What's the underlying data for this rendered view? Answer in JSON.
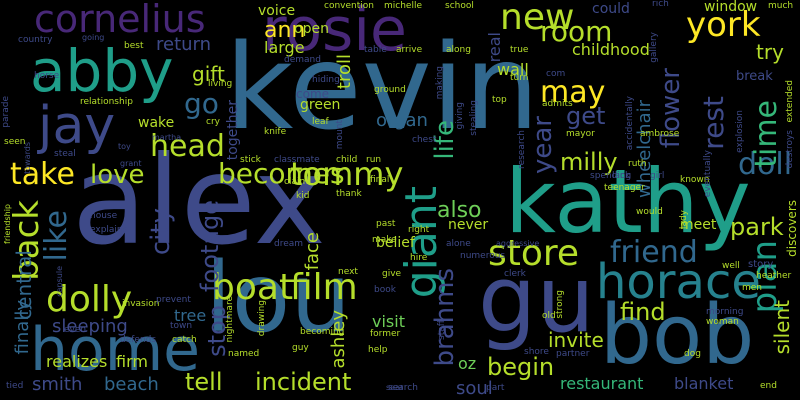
{
  "title": "",
  "palette": [
    "#440154",
    "#482878",
    "#3e4a89",
    "#31688e",
    "#26828e",
    "#1f9e89",
    "#35b779",
    "#6ece58",
    "#b5de2b",
    "#fde725"
  ],
  "words": [
    {
      "text": "kevin",
      "color": "#31688e"
    },
    {
      "text": "alex",
      "color": "#3e4a89"
    },
    {
      "text": "kathy",
      "color": "#1f9e89"
    },
    {
      "text": "abby",
      "color": "#1f9e89"
    },
    {
      "text": "lou",
      "color": "#31688e"
    },
    {
      "text": "gu",
      "color": "#3e4a89"
    },
    {
      "text": "bob",
      "color": "#31688e"
    },
    {
      "text": "home",
      "color": "#31688e"
    },
    {
      "text": "horace",
      "color": "#26828e"
    },
    {
      "text": "rosie",
      "color": "#482878"
    },
    {
      "text": "cornelius",
      "color": "#482878"
    },
    {
      "text": "jay",
      "color": "#3e4a89"
    },
    {
      "text": "giant",
      "color": "#1f9e89"
    },
    {
      "text": "boat",
      "color": "#b5de2b"
    },
    {
      "text": "film",
      "color": "#b5de2b"
    },
    {
      "text": "store",
      "color": "#b5de2b"
    },
    {
      "text": "dolly",
      "color": "#b5de2b"
    },
    {
      "text": "tommy",
      "color": "#b5de2b"
    },
    {
      "text": "new",
      "color": "#b5de2b"
    },
    {
      "text": "york",
      "color": "#fde725"
    },
    {
      "text": "room",
      "color": "#b5de2b"
    },
    {
      "text": "may",
      "color": "#fde725"
    },
    {
      "text": "friend",
      "color": "#31688e"
    },
    {
      "text": "plan",
      "color": "#1f9e89"
    },
    {
      "text": "doll",
      "color": "#31688e"
    },
    {
      "text": "time",
      "color": "#35b779"
    },
    {
      "text": "rest",
      "color": "#3e4a89"
    },
    {
      "text": "flower",
      "color": "#3e4a89"
    },
    {
      "text": "head",
      "color": "#b5de2b"
    },
    {
      "text": "take",
      "color": "#fde725"
    },
    {
      "text": "love",
      "color": "#b5de2b"
    },
    {
      "text": "becomes",
      "color": "#b5de2b"
    },
    {
      "text": "back",
      "color": "#b5de2b"
    },
    {
      "text": "like",
      "color": "#31688e"
    },
    {
      "text": "tell",
      "color": "#b5de2b"
    },
    {
      "text": "incident",
      "color": "#b5de2b"
    },
    {
      "text": "begin",
      "color": "#b5de2b"
    },
    {
      "text": "brahms",
      "color": "#3e4a89"
    },
    {
      "text": "life",
      "color": "#35b779"
    },
    {
      "text": "go",
      "color": "#31688e"
    },
    {
      "text": "get",
      "color": "#3e4a89"
    },
    {
      "text": "year",
      "color": "#3e4a89"
    },
    {
      "text": "find",
      "color": "#b5de2b"
    },
    {
      "text": "park",
      "color": "#b5de2b"
    },
    {
      "text": "milly",
      "color": "#b5de2b"
    },
    {
      "text": "also",
      "color": "#6ece58"
    },
    {
      "text": "city",
      "color": "#3e4a89"
    },
    {
      "text": "footage",
      "color": "#3e4a89"
    },
    {
      "text": "stop",
      "color": "#3e4a89"
    },
    {
      "text": "gift",
      "color": "#b5de2b"
    },
    {
      "text": "return",
      "color": "#3e4a89"
    },
    {
      "text": "central",
      "color": "#31688e"
    },
    {
      "text": "sleeping",
      "color": "#3e4a89"
    },
    {
      "text": "smith",
      "color": "#3e4a89"
    },
    {
      "text": "beach",
      "color": "#31688e"
    },
    {
      "text": "silent",
      "color": "#b5de2b"
    },
    {
      "text": "invite",
      "color": "#b5de2b"
    },
    {
      "text": "restaurant",
      "color": "#35b779"
    },
    {
      "text": "blanket",
      "color": "#3e4a89"
    },
    {
      "text": "soul",
      "color": "#3e4a89"
    },
    {
      "text": "oz",
      "color": "#6ece58"
    },
    {
      "text": "wheelchair",
      "color": "#31688e"
    },
    {
      "text": "try",
      "color": "#b5de2b"
    },
    {
      "text": "childhood",
      "color": "#b5de2b"
    },
    {
      "text": "ann",
      "color": "#fde725"
    },
    {
      "text": "large",
      "color": "#b5de2b"
    },
    {
      "text": "troll",
      "color": "#b5de2b"
    },
    {
      "text": "wall",
      "color": "#b5de2b"
    },
    {
      "text": "real",
      "color": "#3e4a89"
    },
    {
      "text": "open",
      "color": "#b5de2b"
    },
    {
      "text": "voice",
      "color": "#b5de2b"
    },
    {
      "text": "convention",
      "color": "#b5de2b"
    },
    {
      "text": "michelle",
      "color": "#b5de2b"
    },
    {
      "text": "school",
      "color": "#b5de2b"
    },
    {
      "text": "could",
      "color": "#3e4a89"
    },
    {
      "text": "rich",
      "color": "#3e4a89"
    },
    {
      "text": "window",
      "color": "#b5de2b"
    },
    {
      "text": "much",
      "color": "#b5de2b"
    },
    {
      "text": "break",
      "color": "#3e4a89"
    },
    {
      "text": "wake",
      "color": "#b5de2b"
    },
    {
      "text": "together",
      "color": "#3e4a89"
    },
    {
      "text": "green",
      "color": "#b5de2b"
    },
    {
      "text": "come",
      "color": "#3e4a89"
    },
    {
      "text": "organ",
      "color": "#31688e"
    },
    {
      "text": "belief",
      "color": "#b5de2b"
    },
    {
      "text": "face",
      "color": "#b5de2b"
    },
    {
      "text": "visit",
      "color": "#6ece58"
    },
    {
      "text": "ashley",
      "color": "#b5de2b"
    },
    {
      "text": "tree",
      "color": "#31688e"
    },
    {
      "text": "realizes",
      "color": "#b5de2b"
    },
    {
      "text": "firm",
      "color": "#b5de2b"
    },
    {
      "text": "finally",
      "color": "#31688e"
    },
    {
      "text": "never",
      "color": "#b5de2b"
    },
    {
      "text": "meet",
      "color": "#b5de2b"
    },
    {
      "text": "discovers",
      "color": "#b5de2b"
    },
    {
      "text": "story",
      "color": "#3e4a89"
    },
    {
      "text": "country",
      "color": "#3e4a89"
    },
    {
      "text": "horse",
      "color": "#3e4a89"
    },
    {
      "text": "best",
      "color": "#b5de2b"
    },
    {
      "text": "going",
      "color": "#3e4a89"
    },
    {
      "text": "relationship",
      "color": "#b5de2b"
    },
    {
      "text": "parade",
      "color": "#3e4a89"
    },
    {
      "text": "seen",
      "color": "#b5de2b"
    },
    {
      "text": "steal",
      "color": "#3e4a89"
    },
    {
      "text": "martha",
      "color": "#3e4a89"
    },
    {
      "text": "toy",
      "color": "#3e4a89"
    },
    {
      "text": "cry",
      "color": "#b5de2b"
    },
    {
      "text": "knife",
      "color": "#b5de2b"
    },
    {
      "text": "leaf",
      "color": "#b5de2b"
    },
    {
      "text": "hiding",
      "color": "#3e4a89"
    },
    {
      "text": "ground",
      "color": "#b5de2b"
    },
    {
      "text": "making",
      "color": "#3e4a89"
    },
    {
      "text": "giving",
      "color": "#3e4a89"
    },
    {
      "text": "stealing",
      "color": "#3e4a89"
    },
    {
      "text": "towards",
      "color": "#3e4a89"
    },
    {
      "text": "capsule",
      "color": "#3e4a89"
    },
    {
      "text": "friendship",
      "color": "#b5de2b"
    },
    {
      "text": "grant",
      "color": "#3e4a89"
    },
    {
      "text": "house",
      "color": "#3e4a89"
    },
    {
      "text": "explains",
      "color": "#3e4a89"
    },
    {
      "text": "invasion",
      "color": "#b5de2b"
    },
    {
      "text": "town",
      "color": "#3e4a89"
    },
    {
      "text": "drawing",
      "color": "#b5de2b"
    },
    {
      "text": "nightmare",
      "color": "#b5de2b"
    },
    {
      "text": "dream",
      "color": "#3e4a89"
    },
    {
      "text": "kid",
      "color": "#b5de2b"
    },
    {
      "text": "stick",
      "color": "#b5de2b"
    },
    {
      "text": "classmate",
      "color": "#3e4a89"
    },
    {
      "text": "child",
      "color": "#b5de2b"
    },
    {
      "text": "run",
      "color": "#b5de2b"
    },
    {
      "text": "claim",
      "color": "#b5de2b"
    },
    {
      "text": "thank",
      "color": "#b5de2b"
    },
    {
      "text": "final",
      "color": "#b5de2b"
    },
    {
      "text": "right",
      "color": "#b5de2b"
    },
    {
      "text": "past",
      "color": "#b5de2b"
    },
    {
      "text": "hire",
      "color": "#b5de2b"
    },
    {
      "text": "make",
      "color": "#b5de2b"
    },
    {
      "text": "give",
      "color": "#b5de2b"
    },
    {
      "text": "book",
      "color": "#3e4a89"
    },
    {
      "text": "former",
      "color": "#b5de2b"
    },
    {
      "text": "help",
      "color": "#b5de2b"
    },
    {
      "text": "search",
      "color": "#3e4a89"
    },
    {
      "text": "alone",
      "color": "#3e4a89"
    },
    {
      "text": "aggressive",
      "color": "#3e4a89"
    },
    {
      "text": "numerous",
      "color": "#3e4a89"
    },
    {
      "text": "clerk",
      "color": "#3e4a89"
    },
    {
      "text": "staff",
      "color": "#3e4a89"
    },
    {
      "text": "strong",
      "color": "#b5de2b"
    },
    {
      "text": "old",
      "color": "#b5de2b"
    },
    {
      "text": "shore",
      "color": "#3e4a89"
    },
    {
      "text": "partner",
      "color": "#3e4a89"
    },
    {
      "text": "part",
      "color": "#3e4a89"
    },
    {
      "text": "dog",
      "color": "#b5de2b"
    },
    {
      "text": "end",
      "color": "#b5de2b"
    },
    {
      "text": "next",
      "color": "#b5de2b"
    },
    {
      "text": "becoming",
      "color": "#b5de2b"
    },
    {
      "text": "guy",
      "color": "#b5de2b"
    },
    {
      "text": "named",
      "color": "#b5de2b"
    },
    {
      "text": "prevent",
      "color": "#3e4a89"
    },
    {
      "text": "catch",
      "color": "#b5de2b"
    },
    {
      "text": "defends",
      "color": "#3e4a89"
    },
    {
      "text": "tied",
      "color": "#3e4a89"
    },
    {
      "text": "table",
      "color": "#3e4a89"
    },
    {
      "text": "arrive",
      "color": "#b5de2b"
    },
    {
      "text": "along",
      "color": "#b5de2b"
    },
    {
      "text": "demand",
      "color": "#3e4a89"
    },
    {
      "text": "living",
      "color": "#b5de2b"
    },
    {
      "text": "true",
      "color": "#b5de2b"
    },
    {
      "text": "turn",
      "color": "#b5de2b"
    },
    {
      "text": "top",
      "color": "#b5de2b"
    },
    {
      "text": "admits",
      "color": "#b5de2b"
    },
    {
      "text": "mayor",
      "color": "#b5de2b"
    },
    {
      "text": "research",
      "color": "#3e4a89"
    },
    {
      "text": "spending",
      "color": "#3e4a89"
    },
    {
      "text": "teenager",
      "color": "#b5de2b"
    },
    {
      "text": "would",
      "color": "#b5de2b"
    },
    {
      "text": "ruth",
      "color": "#b5de2b"
    },
    {
      "text": "lack",
      "color": "#3e4a89"
    },
    {
      "text": "girl",
      "color": "#3e4a89"
    },
    {
      "text": "known",
      "color": "#b5de2b"
    },
    {
      "text": "lady",
      "color": "#b5de2b"
    },
    {
      "text": "eventually",
      "color": "#3e4a89"
    },
    {
      "text": "accidentally",
      "color": "#3e4a89"
    },
    {
      "text": "ambrose",
      "color": "#b5de2b"
    },
    {
      "text": "explosion",
      "color": "#3e4a89"
    },
    {
      "text": "gallery",
      "color": "#3e4a89"
    },
    {
      "text": "extended",
      "color": "#b5de2b"
    },
    {
      "text": "destroys",
      "color": "#3e4a89"
    },
    {
      "text": "well",
      "color": "#b5de2b"
    },
    {
      "text": "heather",
      "color": "#b5de2b"
    },
    {
      "text": "men",
      "color": "#b5de2b"
    },
    {
      "text": "woman",
      "color": "#b5de2b"
    },
    {
      "text": "morning",
      "color": "#3e4a89"
    },
    {
      "text": "com",
      "color": "#3e4a89"
    },
    {
      "text": "mount",
      "color": "#3e4a89"
    },
    {
      "text": "chest",
      "color": "#3e4a89"
    },
    {
      "text": "sear",
      "color": "#3e4a89"
    },
    {
      "text": "even",
      "color": "#3e4a89"
    }
  ]
}
